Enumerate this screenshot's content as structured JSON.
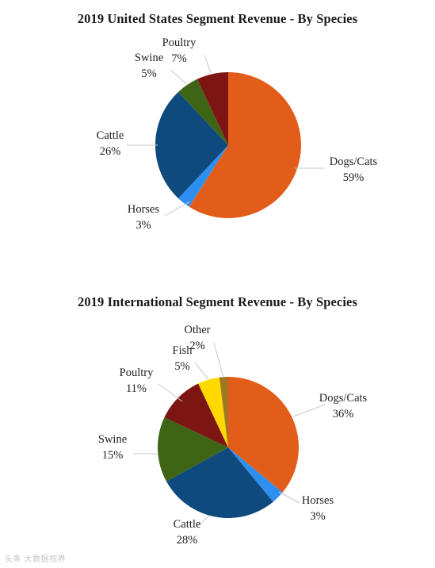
{
  "chart_data": [
    {
      "type": "pie",
      "title": "2019 United States Segment Revenue - By Species",
      "slices": [
        {
          "label": "Dogs/Cats",
          "value": 59,
          "value_label": "59%",
          "color": "#e35d1a"
        },
        {
          "label": "Horses",
          "value": 3,
          "value_label": "3%",
          "color": "#2d8ff0"
        },
        {
          "label": "Cattle",
          "value": 26,
          "value_label": "26%",
          "color": "#0f4a7e"
        },
        {
          "label": "Swine",
          "value": 5,
          "value_label": "5%",
          "color": "#3e6516"
        },
        {
          "label": "Poultry",
          "value": 7,
          "value_label": "7%",
          "color": "#7d1612"
        }
      ],
      "start_angle_deg": 0,
      "direction": "clockwise",
      "legend": "none"
    },
    {
      "type": "pie",
      "title": "2019 International Segment Revenue - By Species",
      "slices": [
        {
          "label": "Dogs/Cats",
          "value": 36,
          "value_label": "36%",
          "color": "#e35d1a"
        },
        {
          "label": "Horses",
          "value": 3,
          "value_label": "3%",
          "color": "#2d8ff0"
        },
        {
          "label": "Cattle",
          "value": 28,
          "value_label": "28%",
          "color": "#0f4a7e"
        },
        {
          "label": "Swine",
          "value": 15,
          "value_label": "15%",
          "color": "#3e6516"
        },
        {
          "label": "Poultry",
          "value": 11,
          "value_label": "11%",
          "color": "#7d1612"
        },
        {
          "label": "Fish",
          "value": 5,
          "value_label": "5%",
          "color": "#ffd800"
        },
        {
          "label": "Other",
          "value": 2,
          "value_label": "2%",
          "color": "#a1781f"
        }
      ],
      "start_angle_deg": 0,
      "direction": "clockwise",
      "legend": "none"
    }
  ],
  "watermark": "头条 大数据视界"
}
